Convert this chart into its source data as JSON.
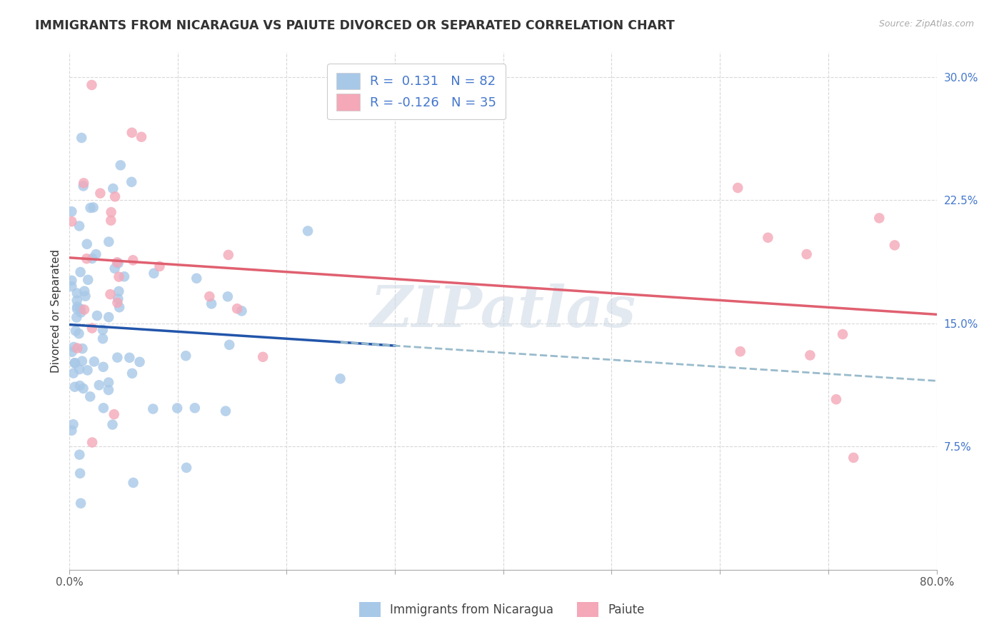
{
  "title": "IMMIGRANTS FROM NICARAGUA VS PAIUTE DIVORCED OR SEPARATED CORRELATION CHART",
  "source": "Source: ZipAtlas.com",
  "ylabel": "Divorced or Separated",
  "legend_label1": "Immigrants from Nicaragua",
  "legend_label2": "Paiute",
  "r1": 0.131,
  "n1": 82,
  "r2": -0.126,
  "n2": 35,
  "xmin": 0.0,
  "xmax": 0.8,
  "ymin": 0.0,
  "ymax": 0.315,
  "ytick_positions": [
    0.075,
    0.15,
    0.225,
    0.3
  ],
  "ytick_labels": [
    "7.5%",
    "15.0%",
    "22.5%",
    "30.0%"
  ],
  "color1": "#a8c8e8",
  "color2": "#f4a8b8",
  "line_color1": "#2255aa",
  "line_color2": "#e06070",
  "line_color_dash": "#99bbcc",
  "background_color": "#ffffff",
  "watermark": "ZIPatlas",
  "title_fontsize": 12.5,
  "axis_label_fontsize": 11,
  "tick_fontsize": 11,
  "legend_fontsize": 13,
  "blue_text_color": "#4477cc",
  "dark_text_color": "#333333"
}
